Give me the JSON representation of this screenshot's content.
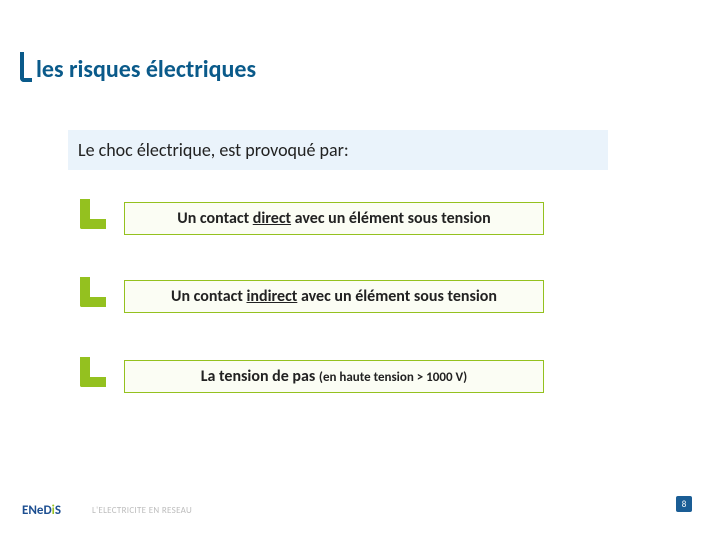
{
  "colors": {
    "title_text": "#0a5a8a",
    "title_marker": "#0a5a8a",
    "subtitle_bg": "#eaf3fb",
    "subtitle_text": "#222222",
    "bullet_marker": "#94c11f",
    "box_border": "#94c11f",
    "box_bg": "#fbfdf4",
    "box_text": "#222222",
    "pagenum_bg": "#1a5d95",
    "tagline": "#bdbdbd"
  },
  "title": "les risques électriques",
  "subtitle": "Le choc électrique, est provoqué par:",
  "bullets": [
    {
      "pre": "Un contact ",
      "u": "direct",
      "post": " avec un élément sous tension",
      "paren": ""
    },
    {
      "pre": "Un contact ",
      "u": "indirect",
      "post": " avec un élément sous tension",
      "paren": ""
    },
    {
      "pre": "La tension de pas ",
      "u": "",
      "post": "",
      "paren": "(en haute tension > 1000 V)"
    }
  ],
  "bullet_tops": [
    202,
    280,
    360
  ],
  "footer": {
    "logo_a": "ENeD",
    "logo_b": "i",
    "logo_c": "S",
    "tagline": "L'ELECTRICITE EN RESEAU"
  },
  "page_number": "8"
}
